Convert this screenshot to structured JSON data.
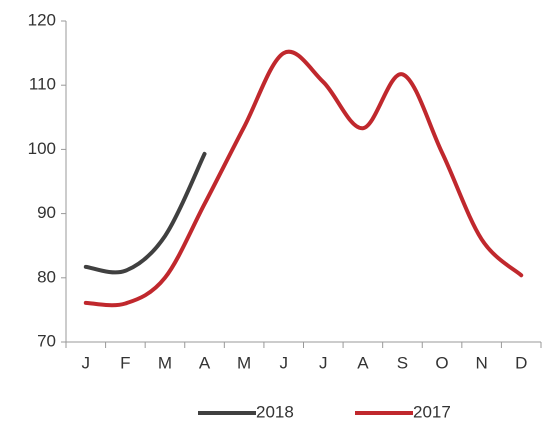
{
  "chart_data": {
    "type": "line",
    "categories": [
      "J",
      "F",
      "M",
      "A",
      "M",
      "J",
      "J",
      "A",
      "S",
      "O",
      "N",
      "D"
    ],
    "series": [
      {
        "name": "2018",
        "color": "#404040",
        "values": [
          81.7,
          81.1,
          86.5,
          99.3,
          null,
          null,
          null,
          null,
          null,
          null,
          null,
          null
        ]
      },
      {
        "name": "2017",
        "color": "#c0282d",
        "values": [
          76.1,
          76.0,
          80.0,
          91.5,
          103.5,
          115.0,
          110.5,
          103.3,
          111.7,
          99.5,
          86.0,
          80.4
        ]
      }
    ],
    "ylim": [
      70,
      120
    ],
    "yticks": [
      70,
      80,
      90,
      100,
      110,
      120
    ],
    "grid": false,
    "legend": "bottom"
  }
}
